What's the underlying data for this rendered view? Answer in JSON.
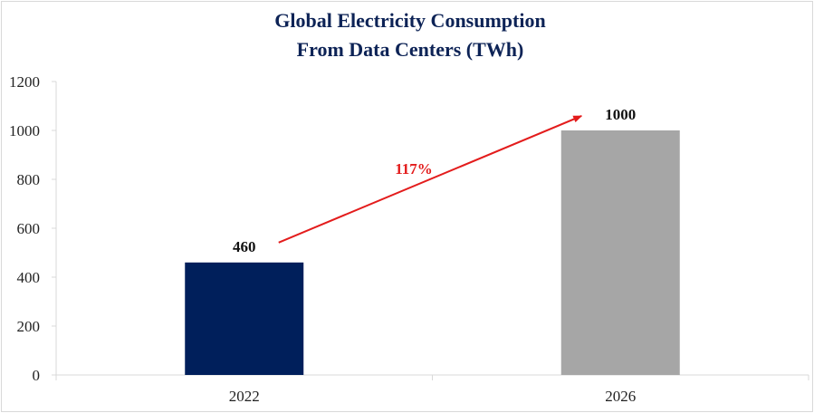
{
  "chart_data": {
    "type": "bar",
    "title": [
      "Global Electricity Consumption",
      "From Data Centers (TWh)"
    ],
    "categories": [
      "2022",
      "2026"
    ],
    "values": [
      460,
      1000
    ],
    "data_labels": [
      "460",
      "1000"
    ],
    "bar_colors": [
      "#001f5b",
      "#a6a6a6"
    ],
    "ylim": [
      0,
      1200
    ],
    "yticks": [
      "0",
      "200",
      "400",
      "600",
      "800",
      "1000",
      "1200"
    ],
    "grid": false,
    "legend": "none",
    "annotation": {
      "text": "117%",
      "color": "#e31c1c",
      "type": "arrow",
      "from_category": "2022",
      "to_category": "2026"
    },
    "title_color": "#0d2356"
  }
}
